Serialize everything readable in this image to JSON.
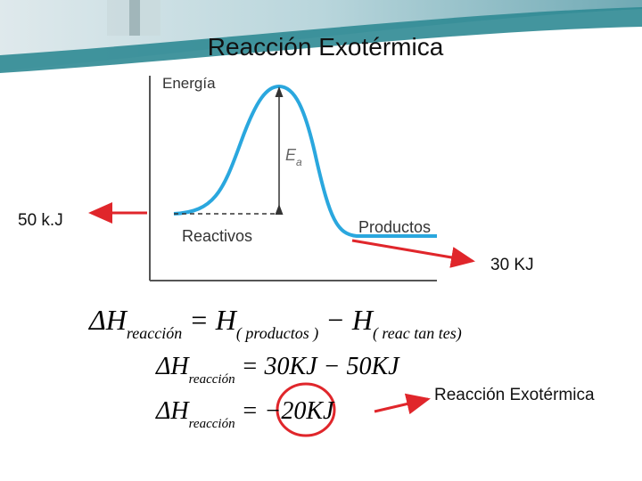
{
  "title": "Reacción Exotérmica",
  "diagram": {
    "y_axis_label": "Energía",
    "activation": {
      "text": "E",
      "sub": "a"
    },
    "reactants": "Reactivos",
    "products": "Productos"
  },
  "annotations": {
    "reactants_energy": "50 k.J",
    "products_energy": "30 KJ",
    "conclusion": "Reacción Exotérmica"
  },
  "equations": [
    [
      {
        "text": "ΔH",
        "sub": false
      },
      {
        "text": "reacción",
        "sub": true
      },
      {
        "text": " = H",
        "sub": false
      },
      {
        "text": "( productos )",
        "sub": true
      },
      {
        "text": " − H",
        "sub": false
      },
      {
        "text": "( reac tan tes)",
        "sub": true
      }
    ],
    [
      {
        "text": "ΔH",
        "sub": false
      },
      {
        "text": "reacción",
        "sub": true
      },
      {
        "text": " = 30KJ − 50KJ",
        "sub": false
      }
    ],
    [
      {
        "text": "ΔH",
        "sub": false
      },
      {
        "text": "reacción",
        "sub": true
      },
      {
        "text": " = −20KJ",
        "sub": false
      }
    ]
  ]
}
